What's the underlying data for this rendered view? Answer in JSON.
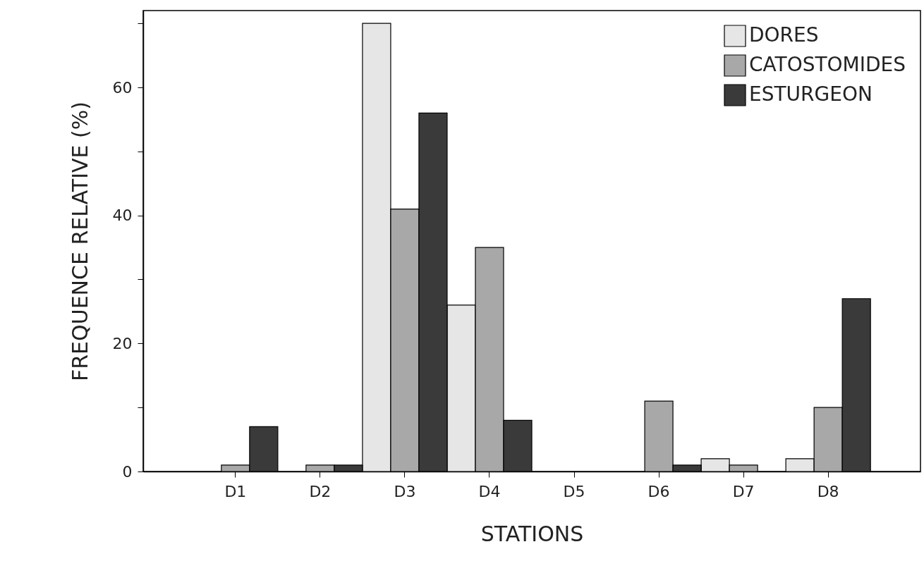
{
  "chart_data": {
    "type": "bar",
    "xlabel": "STATIONS",
    "ylabel": "FREQUENCE RELATIVE (%)",
    "categories": [
      "D1",
      "D2",
      "D3",
      "D4",
      "D5",
      "D6",
      "D7",
      "D8"
    ],
    "series": [
      {
        "name": "DORES",
        "color": "#e6e6e6",
        "values": [
          0,
          0,
          70,
          26,
          0,
          0,
          2,
          2
        ]
      },
      {
        "name": "CATOSTOMIDES",
        "color": "#a8a8a8",
        "values": [
          1,
          1,
          41,
          35,
          0,
          11,
          1,
          10
        ]
      },
      {
        "name": "ESTURGEON",
        "color": "#3a3a3a",
        "values": [
          7,
          1,
          56,
          8,
          0,
          1,
          0,
          27
        ]
      }
    ],
    "ylim": [
      0,
      72
    ],
    "yticks": [
      0,
      {
        "value": 10,
        "label": null
      },
      20,
      {
        "value": 30,
        "label": null
      },
      40,
      {
        "value": 50,
        "label": null
      },
      60,
      {
        "value": 70,
        "label": null
      }
    ],
    "grid": false,
    "legend": "top right"
  }
}
